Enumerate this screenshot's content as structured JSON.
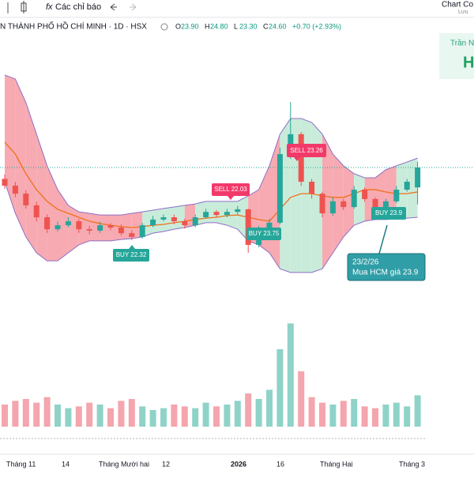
{
  "toolbar": {
    "indicator_icon": "fx",
    "indicators": "Các chỉ báo",
    "layout_name": "Chart Co",
    "save": "Lưu"
  },
  "header": {
    "symbol": "N THÀNH PHỐ HỒ CHÍ MINH · 1D · HSX",
    "ohlc": [
      {
        "label": "O",
        "value": "23.90"
      },
      {
        "label": "H",
        "value": "24.80"
      },
      {
        "label": "L",
        "value": "23.30"
      },
      {
        "label": "C",
        "value": "24.60"
      }
    ],
    "change": "+0.70 (+2.93%)"
  },
  "corner_box": {
    "line1": "Trần N",
    "line2": "H"
  },
  "signals": {
    "sell_1": "SELL 22.03",
    "sell_2": "SELL 23.26",
    "buy_1": "BUY 22.32",
    "buy_2": "BUY 23.75",
    "buy_3": "BUY 23.9"
  },
  "callout": {
    "date": "23/2/26",
    "text": "Mua HCM giá 23.9"
  },
  "x_labels": [
    "Tháng 11",
    "14",
    "Tháng Mười hai",
    "12",
    "2026",
    "16",
    "Tháng Hai",
    "Tháng 3"
  ],
  "chart_data": {
    "type": "candlestick",
    "ylim": [
      20.49,
      28.82
    ],
    "vlim": [
      0,
      6
    ],
    "candles": [
      [
        24.2,
        24.35,
        23.85,
        23.96
      ],
      [
        23.96,
        24.1,
        23.55,
        23.68
      ],
      [
        23.68,
        23.8,
        23.15,
        23.27
      ],
      [
        23.27,
        23.4,
        22.7,
        22.85
      ],
      [
        22.85,
        22.95,
        22.3,
        22.43
      ],
      [
        22.43,
        22.7,
        22.35,
        22.57
      ],
      [
        22.57,
        22.85,
        22.5,
        22.71
      ],
      [
        22.71,
        22.8,
        22.3,
        22.43
      ],
      [
        22.43,
        22.55,
        22.25,
        22.38
      ],
      [
        22.38,
        22.7,
        22.3,
        22.57
      ],
      [
        22.57,
        22.65,
        22.4,
        22.49
      ],
      [
        22.49,
        22.6,
        22.2,
        22.29
      ],
      [
        22.29,
        22.4,
        22.05,
        22.16
      ],
      [
        22.16,
        22.65,
        22.1,
        22.57
      ],
      [
        22.57,
        22.9,
        22.5,
        22.77
      ],
      [
        22.77,
        22.95,
        22.7,
        22.85
      ],
      [
        22.85,
        22.95,
        22.6,
        22.71
      ],
      [
        22.71,
        22.8,
        22.45,
        22.57
      ],
      [
        22.57,
        22.95,
        22.5,
        22.85
      ],
      [
        22.85,
        23.15,
        22.8,
        23.04
      ],
      [
        23.04,
        23.1,
        22.85,
        22.93
      ],
      [
        22.93,
        23.15,
        22.85,
        23.04
      ],
      [
        23.04,
        23.25,
        22.95,
        23.13
      ],
      [
        23.13,
        23.15,
        21.6,
        21.88
      ],
      [
        21.88,
        22.55,
        21.8,
        22.43
      ],
      [
        22.43,
        22.8,
        22.35,
        22.66
      ],
      [
        22.66,
        25.3,
        22.6,
        25.07
      ],
      [
        25.07,
        26.9,
        24.9,
        25.77
      ],
      [
        25.77,
        25.85,
        23.95,
        24.1
      ],
      [
        24.1,
        24.2,
        23.5,
        23.68
      ],
      [
        23.68,
        23.75,
        22.85,
        22.99
      ],
      [
        22.99,
        23.55,
        22.9,
        23.41
      ],
      [
        23.41,
        23.5,
        23.1,
        23.21
      ],
      [
        23.21,
        23.95,
        23.15,
        23.82
      ],
      [
        23.82,
        23.9,
        23.4,
        23.49
      ],
      [
        23.49,
        23.55,
        23.0,
        23.13
      ],
      [
        23.13,
        23.5,
        23.05,
        23.41
      ],
      [
        23.41,
        23.95,
        23.35,
        23.82
      ],
      [
        23.82,
        24.2,
        23.75,
        24.1
      ],
      [
        23.9,
        24.8,
        23.3,
        24.6
      ]
    ],
    "volume": [
      1.2,
      1.4,
      1.5,
      1.3,
      1.6,
      1.2,
      1.0,
      1.1,
      1.3,
      1.2,
      1.0,
      1.4,
      1.5,
      1.1,
      0.9,
      1.0,
      1.2,
      1.1,
      1.0,
      1.3,
      1.1,
      1.2,
      1.4,
      1.8,
      1.5,
      2.0,
      4.2,
      5.6,
      3.0,
      1.6,
      1.3,
      1.2,
      1.4,
      1.5,
      1.1,
      1.0,
      1.2,
      1.3,
      1.1,
      1.7
    ],
    "upper": [
      27.85,
      27.71,
      26.88,
      25.77,
      24.66,
      23.82,
      23.27,
      23.04,
      22.99,
      22.93,
      22.93,
      22.93,
      22.99,
      23.04,
      23.1,
      23.16,
      23.21,
      23.27,
      23.32,
      23.41,
      23.41,
      23.41,
      23.41,
      23.6,
      23.82,
      24.66,
      25.77,
      26.32,
      26.32,
      26.18,
      25.77,
      25.07,
      24.66,
      24.38,
      24.24,
      24.24,
      24.52,
      24.66,
      24.79,
      24.93
    ],
    "lower": [
      24.1,
      22.99,
      22.16,
      21.6,
      21.32,
      21.32,
      21.6,
      21.88,
      22.02,
      22.02,
      22.02,
      22.07,
      22.1,
      22.16,
      22.29,
      22.35,
      22.43,
      22.49,
      22.57,
      22.66,
      22.66,
      22.57,
      22.43,
      22.02,
      21.88,
      21.6,
      21.04,
      20.91,
      20.91,
      20.91,
      21.04,
      21.6,
      22.16,
      22.57,
      22.71,
      22.77,
      22.77,
      22.79,
      22.82,
      22.85
    ],
    "ma": [
      25.49,
      25.07,
      24.38,
      23.82,
      23.41,
      23.13,
      22.99,
      22.85,
      22.71,
      22.63,
      22.57,
      22.52,
      22.49,
      22.52,
      22.57,
      22.6,
      22.66,
      22.71,
      22.77,
      22.82,
      22.85,
      22.91,
      22.93,
      22.85,
      22.77,
      22.71,
      23.13,
      23.55,
      23.68,
      23.68,
      23.6,
      23.55,
      23.55,
      23.68,
      23.82,
      23.82,
      23.74,
      23.68,
      23.68,
      23.74
    ]
  }
}
